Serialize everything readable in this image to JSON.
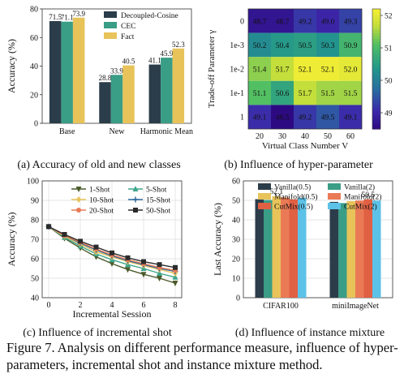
{
  "chart_data": [
    {
      "type": "bar",
      "caption": "(a) Accuracy of old and new classes",
      "ylabel": "Accuracy (%)",
      "xlabel": "",
      "ylim": [
        0,
        80
      ],
      "yticks": [
        0,
        20,
        40,
        60,
        80
      ],
      "grid": false,
      "legend": "top-right",
      "categories": [
        "Base",
        "New",
        "Harmonic Mean"
      ],
      "series": [
        {
          "name": "Decoupled-Cosine",
          "color": "#2b3d4a",
          "values": [
            71.5,
            28.8,
            41.1
          ]
        },
        {
          "name": "CEC",
          "color": "#3a9d86",
          "values": [
            71.1,
            33.9,
            45.9
          ]
        },
        {
          "name": "Fact",
          "color": "#e8c35a",
          "values": [
            73.9,
            40.5,
            52.3
          ]
        }
      ]
    },
    {
      "type": "heatmap",
      "caption": "(b) Influence of hyper-parameter",
      "xlabel": "Virtual Class Number V",
      "ylabel": "Trade-off Parameter γ",
      "x": [
        "20",
        "30",
        "40",
        "50",
        "60"
      ],
      "y": [
        "0",
        "1e-3",
        "1e-2",
        "1e-1",
        "1"
      ],
      "values": [
        [
          48.7,
          48.7,
          49.2,
          49.0,
          49.3
        ],
        [
          50.2,
          50.4,
          50.5,
          50.3,
          50.9
        ],
        [
          51.4,
          51.7,
          52.1,
          52.1,
          52.0
        ],
        [
          51.1,
          50.6,
          51.7,
          51.5,
          51.5
        ],
        [
          49.1,
          48.5,
          49.2,
          49.5,
          49.1
        ]
      ],
      "colorbar_range": [
        48.5,
        52.2
      ],
      "colorbar_ticks": [
        "49",
        "50",
        "51",
        "52"
      ]
    },
    {
      "type": "line",
      "caption": "(c) Influence of incremental shot",
      "xlabel": "Incremental Session",
      "ylabel": "Accuracy (%)",
      "x": [
        0,
        1,
        2,
        3,
        4,
        5,
        6,
        7,
        8
      ],
      "xticks": [
        0,
        2,
        4,
        6,
        8
      ],
      "ylim": [
        40,
        100
      ],
      "yticks": [
        40,
        50,
        60,
        70,
        80,
        90,
        100
      ],
      "grid": true,
      "legend": "top-right",
      "series": [
        {
          "name": "1-Shot",
          "color": "#4a5a2a",
          "marker": "triangle-down",
          "values": [
            76.5,
            70.5,
            65.5,
            61.0,
            57.5,
            54.5,
            52.0,
            50.0,
            47.5
          ]
        },
        {
          "name": "5-Shot",
          "color": "#3ea58b",
          "marker": "triangle-up",
          "values": [
            76.5,
            71.0,
            66.5,
            62.5,
            59.5,
            57.0,
            55.0,
            52.5,
            50.5
          ]
        },
        {
          "name": "10-Shot",
          "color": "#e8c35a",
          "marker": "diamond",
          "values": [
            76.5,
            71.5,
            67.5,
            63.5,
            61.0,
            58.5,
            56.5,
            54.5,
            52.5
          ]
        },
        {
          "name": "15-Shot",
          "color": "#2e6a9e",
          "marker": "plus",
          "values": [
            76.5,
            72.0,
            68.0,
            64.5,
            61.5,
            59.0,
            57.0,
            55.0,
            53.5
          ]
        },
        {
          "name": "20-Shot",
          "color": "#ea7a56",
          "marker": "star",
          "values": [
            76.5,
            72.0,
            68.5,
            65.0,
            62.0,
            59.5,
            57.5,
            55.5,
            54.0
          ]
        },
        {
          "name": "50-Shot",
          "color": "#2b2b2b",
          "marker": "square",
          "values": [
            76.5,
            72.5,
            69.0,
            66.0,
            63.0,
            60.5,
            58.5,
            57.0,
            55.5
          ]
        }
      ]
    },
    {
      "type": "bar",
      "caption": "(d) Influence of instance mixture",
      "ylabel": "Last Accuracy (%)",
      "xlabel": "",
      "ylim": [
        0,
        60
      ],
      "yticks": [
        0,
        10,
        20,
        30,
        40,
        50,
        60
      ],
      "grid": true,
      "legend": "top",
      "categories": [
        "CIFAR100",
        "miniImageNet"
      ],
      "series": [
        {
          "name": "Vanilla(0.5)",
          "color": "#2b3d4a",
          "values": [
            50.6,
            49.2
          ]
        },
        {
          "name": "Vanilla(2)",
          "color": "#3a9d86",
          "values": [
            50.2,
            48.6
          ]
        },
        {
          "name": "Manifold(0.5)",
          "color": "#e8c35a",
          "values": [
            52.1,
            49.6
          ]
        },
        {
          "name": "Manifold(2)",
          "color": "#ea7a56",
          "values": [
            51.5,
            49.9
          ]
        },
        {
          "name": "CutMix(0.5)",
          "color": "#e06043",
          "values": [
            50.5,
            50.5
          ]
        },
        {
          "name": "CutMix(2)",
          "color": "#5cc2e8",
          "values": [
            51.3,
            49.9
          ]
        }
      ],
      "annotations": [
        "52.1",
        "50.5"
      ]
    }
  ],
  "figure_caption": "Figure 7. Analysis on different performance measure, influence of hyper-parameters, incremental shot and instance mixture method."
}
